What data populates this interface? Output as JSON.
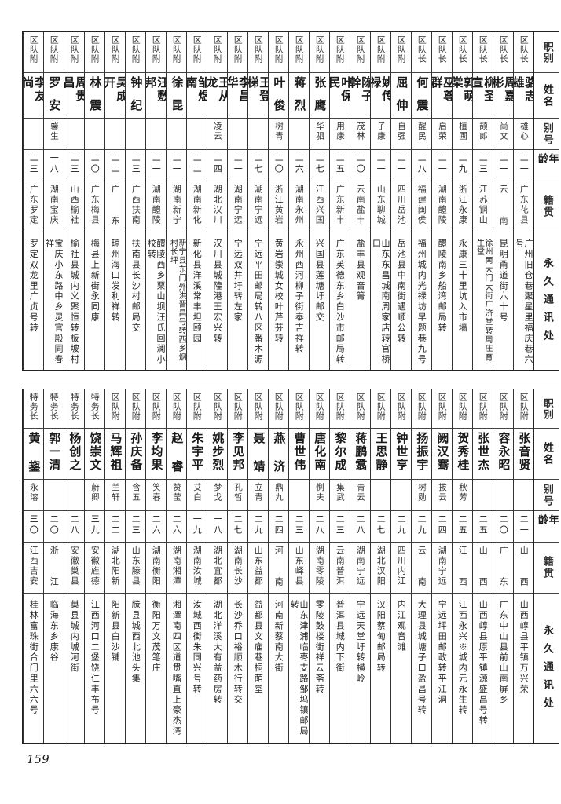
{
  "headers": [
    "职别",
    "姓名",
    "别号",
    "年龄",
    "籍贯",
    "永久通讯处"
  ],
  "page_number": "159",
  "table_top": [
    {
      "role": "区队长",
      "name": "骆志雄",
      "alias": "雄心",
      "age": "二一",
      "origin": "广东花县",
      "address": "广州旧仓巷聚星里福庆巷六号"
    },
    {
      "role": "区队长",
      "name": "周嘉彬",
      "alias": "尚文",
      "age": "二一",
      "origin": "云南",
      "address": "昆明甬道街六十号"
    },
    {
      "role": "区队长",
      "name": "柳圣宣",
      "alias": "颉郎",
      "age": "二三",
      "origin": "江苏铜山",
      "address": "徐州南大门大街广济堂转周庄育生堂"
    },
    {
      "role": "区队长",
      "name": "郭萌棠",
      "alias": "植圃",
      "age": "二九",
      "origin": "浙江永康",
      "address": "永康三十里坑入市墙"
    },
    {
      "role": "区队长",
      "name": "巫尊群",
      "alias": "启荣",
      "age": "二一",
      "origin": "湖南醴陵",
      "address": "醴陵南乡船湾邮局转"
    },
    {
      "role": "区队长",
      "name": "何震",
      "alias": "醒民",
      "age": "二八",
      "origin": "福建闽侯",
      "address": "福州城内光禄坊早题巷九号"
    },
    {
      "role": "区队附",
      "name": "屈伸",
      "alias": "自强",
      "age": "二一",
      "origin": "四川岳池",
      "address": "岳池县中南街遇顺公转"
    },
    {
      "role": "区队附",
      "name": "姚传禄",
      "alias": "子康",
      "age": "二一",
      "origin": "山东聊城",
      "address": "山东东昌城南周家店转官桥口"
    },
    {
      "role": "区队附",
      "name": "陈子幹",
      "alias": "茂林",
      "age": "二〇",
      "origin": "云南盐丰",
      "address": "盐丰县观音箐"
    },
    {
      "role": "区队附",
      "name": "叶保民",
      "alias": "用康",
      "age": "二五",
      "origin": "广东新丰",
      "address": "广东英德东乡白沙市邮局转"
    },
    {
      "role": "区队附",
      "name": "张鹰",
      "alias": "华驷",
      "age": "二七",
      "origin": "江西兴国",
      "address": "兴国县莲塘圩邮交"
    },
    {
      "role": "区队附",
      "name": "蒋烈",
      "alias": "",
      "age": "二六",
      "origin": "湖南永州",
      "address": "永州西河柳子街泰吉祥转"
    },
    {
      "role": "区队附",
      "name": "叶俊",
      "alias": "树青",
      "age": "二〇",
      "origin": "浙江黄岩",
      "address": "黄岩崇城女校叶芹芬转"
    },
    {
      "role": "区队附",
      "name": "王登梯",
      "alias": "",
      "age": "二七",
      "origin": "湖南宁远",
      "address": "宁远平田邮局转八区番木源"
    },
    {
      "role": "区队附",
      "name": "李昌华",
      "alias": "",
      "age": "二一",
      "origin": "湖南宁远",
      "address": "宁远双井圩转左家"
    },
    {
      "role": "区队附",
      "name": "王从龙",
      "alias": "凌云",
      "age": "二四",
      "origin": "湖北汉川",
      "address": "汉川县城隍港王宏兴转"
    },
    {
      "role": "区队附",
      "name": "邹煜南",
      "alias": "",
      "age": "二二",
      "origin": "湖南新化",
      "address": "新化县洋溪常丰坦颐园"
    },
    {
      "role": "区队附",
      "name": "徐昆",
      "alias": "",
      "age": "二一",
      "origin": "湖南新宁",
      "address": "新宁县东门外洪晋昌号转西乡烟村长坪"
    },
    {
      "role": "区队附",
      "name": "汪敷邦",
      "alias": "",
      "age": "二一",
      "origin": "湖南醴陵",
      "address": "醴陵西乡栗山坝汪氏回澜小校转"
    },
    {
      "role": "区队附",
      "name": "钟纪",
      "alias": "",
      "age": "二三",
      "origin": "广西扶南",
      "address": "扶南县长沙村邮局交"
    },
    {
      "role": "区队附",
      "name": "吴成开",
      "alias": "",
      "age": "二二",
      "origin": "广东",
      "address": "琼州海口发利祥转"
    },
    {
      "role": "区队附",
      "name": "林震",
      "alias": "",
      "age": "二〇",
      "origin": "广东梅县",
      "address": "梅县上新街永同康"
    },
    {
      "role": "区队附",
      "name": "周贵昌",
      "alias": "",
      "age": "二三",
      "origin": "山西榆社",
      "address": "榆社县城内义聚恒转板坡村"
    },
    {
      "role": "区队附",
      "name": "罗安",
      "alias": "馨生",
      "age": "一八",
      "origin": "湖南宝庆",
      "address": "宝庆小东路中乡灵官殿同春祥"
    },
    {
      "role": "区队附",
      "name": "李友尚",
      "alias": "",
      "age": "二三",
      "origin": "广东罗定",
      "address": "罗定双龙里广贞号转"
    }
  ],
  "table_bottom": [
    {
      "role": "区队附",
      "name": "张音贤",
      "alias": "",
      "age": "二一",
      "origin": "山西",
      "address": "山西崞县平镇万兴荣"
    },
    {
      "role": "区队附",
      "name": "容永昭",
      "alias": "",
      "age": "二〇",
      "origin": "广东",
      "address": "广东中山县前山南屏乡"
    },
    {
      "role": "区队附",
      "name": "张世杰",
      "alias": "",
      "age": "二五",
      "origin": "山西",
      "address": "山西崞县原平镇源盛昌号转"
    },
    {
      "role": "区队附",
      "name": "贺秀桂",
      "alias": "秋芳",
      "age": "二五",
      "origin": "江西",
      "address": "江西永兴※城内元永生转"
    },
    {
      "role": "区队附",
      "name": "阙汉骞",
      "alias": "拔云",
      "age": "二四",
      "origin": "湖南宁远",
      "address": "宁远坪田邮政转平江洞"
    },
    {
      "role": "区队附",
      "name": "扬振宇",
      "alias": "树勋",
      "age": "二九",
      "origin": "云南",
      "address": "大理县城塘子口盈昌号转"
    },
    {
      "role": "区队附",
      "name": "钟世亨",
      "alias": "",
      "age": "二九",
      "origin": "四川内江",
      "address": "内江观音滩"
    },
    {
      "role": "区队附",
      "name": "王思静",
      "alias": "",
      "age": "二七",
      "origin": "湖北汉阳",
      "address": "汉阳蔡甸邮局转"
    },
    {
      "role": "区队附",
      "name": "蒋鹏翥",
      "alias": "青云",
      "age": "二八",
      "origin": "湖南宁远",
      "address": "宁远天堂圩转横岭"
    },
    {
      "role": "区队附",
      "name": "黎尔成",
      "alias": "集武",
      "age": "二三",
      "origin": "云南普洱",
      "address": "普洱县城内下街"
    },
    {
      "role": "区队附",
      "name": "唐化南",
      "alias": "惻夫",
      "age": "二八",
      "origin": "湖南零陵",
      "address": "零陵鼓楼街祥云斋转"
    },
    {
      "role": "区队附",
      "name": "曹世伟",
      "alias": "",
      "age": "二三",
      "origin": "山东峄县",
      "address": "山东津浦临枣支路邹坞镇邮局转"
    },
    {
      "role": "区队附",
      "name": "燕济",
      "alias": "鼎九",
      "age": "二四",
      "origin": "河南",
      "address": "河南新蔡南大街"
    },
    {
      "role": "区队附",
      "name": "聂靖",
      "alias": "立青",
      "age": "二九",
      "origin": "山东益都",
      "address": "益都县文庙巷桐荫堂"
    },
    {
      "role": "区队附",
      "name": "李见邦",
      "alias": "孔晳",
      "age": "二七",
      "origin": "湖南长沙",
      "address": "长沙乔口裕顺木行转交"
    },
    {
      "role": "区队附",
      "name": "姚步烈",
      "alias": "梦戈",
      "age": "一八",
      "origin": "湖北宜都",
      "address": "湖北洋溪大有益药房转"
    },
    {
      "role": "区队附",
      "name": "朱宇平",
      "alias": "艾白",
      "age": "一九",
      "origin": "湖南汝城",
      "address": "汝城西街朱同兴号转"
    },
    {
      "role": "区队附",
      "name": "赵睿",
      "alias": "赞莹",
      "age": "二六",
      "origin": "湖南湘潭",
      "address": "湘潭南四区道贯嘴直上豪杰湾"
    },
    {
      "role": "区队附",
      "name": "李均果",
      "alias": "笑春",
      "age": "二六",
      "origin": "湖南衡阳",
      "address": "衡阳万文茂笔庄"
    },
    {
      "role": "区队附",
      "name": "孙庆备",
      "alias": "含五",
      "age": "二三",
      "origin": "山东滕县",
      "address": "滕县城西北池头集"
    },
    {
      "role": "区队附",
      "name": "马辉祖",
      "alias": "兰轩",
      "age": "二二",
      "origin": "湖北阳新",
      "address": "阳新县白沙铺"
    },
    {
      "role": "特务长",
      "name": "饶崇文",
      "alias": "蔚卿",
      "age": "三九",
      "origin": "安徽旌德",
      "address": "江西河口二堡饶仁丰布号"
    },
    {
      "role": "特务长",
      "name": "杨创之",
      "alias": "",
      "age": "二八",
      "origin": "安徽巢县",
      "address": "巢县城内城河街"
    },
    {
      "role": "特务长",
      "name": "郭一清",
      "alias": "",
      "age": "二〇",
      "origin": "浙江",
      "address": "临海东乡康谷"
    },
    {
      "role": "特务长",
      "name": "黄鋆",
      "alias": "永溶",
      "age": "三〇",
      "origin": "江西吉安",
      "address": "桂林富珠街合门里六六号"
    }
  ]
}
